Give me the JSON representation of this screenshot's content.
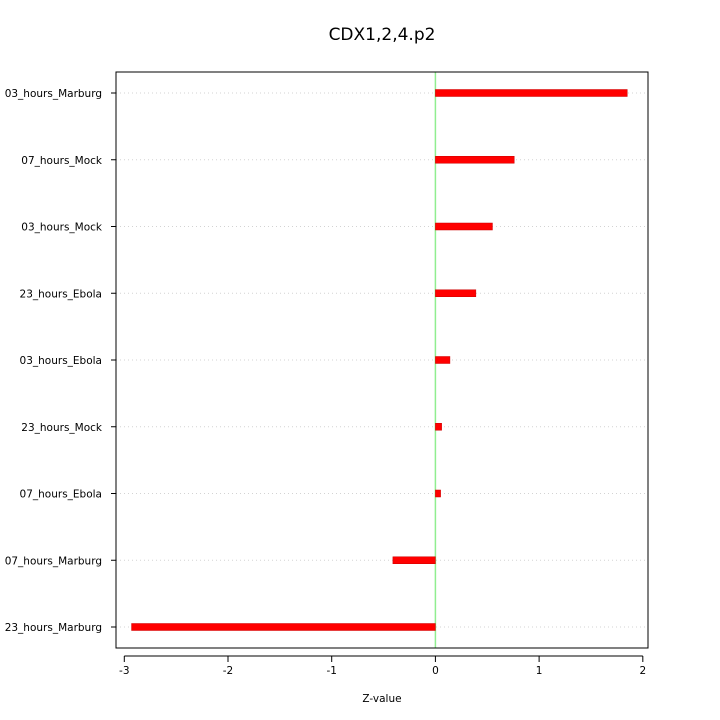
{
  "chart_data": {
    "type": "bar",
    "orientation": "horizontal",
    "title": "CDX1,2,4.p2",
    "xlabel": "Z-value",
    "ylabel": "",
    "xlim": [
      -3.08,
      2.05
    ],
    "xticks": [
      -3,
      -2,
      -1,
      0,
      1,
      2
    ],
    "reference_line": 0,
    "grid": "horizontal dotted",
    "colors": {
      "bar": "#ff0000",
      "bar_border": "#cc0000",
      "reference_line": "#90ee90",
      "grid": "#d3d3d3"
    },
    "categories": [
      "03_hours_Marburg",
      "07_hours_Mock",
      "03_hours_Mock",
      "23_hours_Ebola",
      "03_hours_Ebola",
      "23_hours_Mock",
      "07_hours_Ebola",
      "07_hours_Marburg",
      "23_hours_Marburg"
    ],
    "values": [
      1.85,
      0.76,
      0.55,
      0.39,
      0.14,
      0.06,
      0.05,
      -0.41,
      -2.93
    ]
  }
}
